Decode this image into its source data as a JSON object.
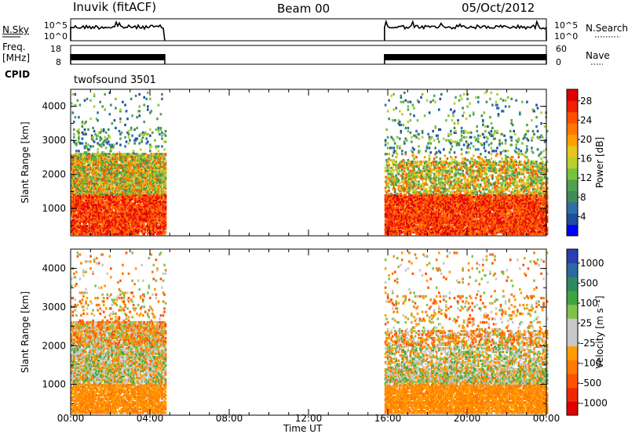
{
  "header": {
    "station": "Inuvik (fitACF)",
    "beam": "Beam 00",
    "date": "05/Oct/2012"
  },
  "side_labels": {
    "nsky": "N.Sky",
    "freq": "Freq.",
    "freq_unit": "[MHz]",
    "cpid": "CPID",
    "nsearch": "N.Search",
    "nave": "Nave"
  },
  "cpid_name": "twofsound 3501",
  "xlabel": "Time UT",
  "colors": {
    "power": [
      "#0000ff",
      "#1c4fa0",
      "#2d6fa8",
      "#3f8b5a",
      "#4fa24d",
      "#79c23e",
      "#b8cf2d",
      "#e8c520",
      "#ff9f00",
      "#ff7800",
      "#ff5000",
      "#f02000",
      "#e00000"
    ],
    "velocity": [
      "#2a3fb0",
      "#2a6aa0",
      "#2e8a5e",
      "#3da63f",
      "#7fc24a",
      "#c8c8c8",
      "#c8c8c8",
      "#ff9c00",
      "#ff7a00",
      "#ff5200",
      "#f02800",
      "#e00000"
    ]
  },
  "chart_data": [
    {
      "type": "line",
      "title": "N.Sky / N.Search",
      "yticks_left": [
        "10^5",
        "10^0"
      ],
      "x": [
        "00:00",
        "04:45",
        "15:50",
        "24:00"
      ],
      "series": [
        {
          "segments": [
            [
              "00:00",
              "04:45"
            ],
            [
              "15:50",
              "24:00"
            ]
          ]
        }
      ]
    },
    {
      "type": "line",
      "title": "Freq / Nave",
      "yticks_left": [
        "18",
        "8"
      ],
      "yticks_right": [
        "60",
        "0"
      ],
      "series": [
        {
          "segments": [
            [
              "00:00",
              "04:45"
            ],
            [
              "15:50",
              "24:00"
            ]
          ]
        }
      ]
    },
    {
      "type": "heatmap",
      "ylabel": "Slant Range [km]",
      "colorbar_label": "Power [dB]",
      "colorbar_ticks": [
        "4",
        "8",
        "12",
        "16",
        "20",
        "24",
        "28"
      ],
      "xticks": [
        "00:00",
        "04:00",
        "08:00",
        "12:00",
        "16:00",
        "20:00",
        "00:00"
      ],
      "yticks": [
        "1000",
        "2000",
        "3000",
        "4000"
      ],
      "ylim": [
        200,
        4500
      ],
      "data_windows": [
        [
          "00:00",
          "04:45"
        ],
        [
          "15:50",
          "24:00"
        ]
      ]
    },
    {
      "type": "heatmap",
      "ylabel": "Slant Range [km]",
      "colorbar_label": "Velocity [m s⁻¹]",
      "colorbar_ticks": [
        "1000",
        "500",
        "100",
        "25",
        "-25",
        "-100",
        "-500",
        "-1000"
      ],
      "xticks": [
        "00:00",
        "04:00",
        "08:00",
        "12:00",
        "16:00",
        "20:00",
        "00:00"
      ],
      "yticks": [
        "1000",
        "2000",
        "3000",
        "4000"
      ],
      "ylim": [
        200,
        4500
      ],
      "data_windows": [
        [
          "00:00",
          "04:45"
        ],
        [
          "15:50",
          "24:00"
        ]
      ]
    }
  ]
}
